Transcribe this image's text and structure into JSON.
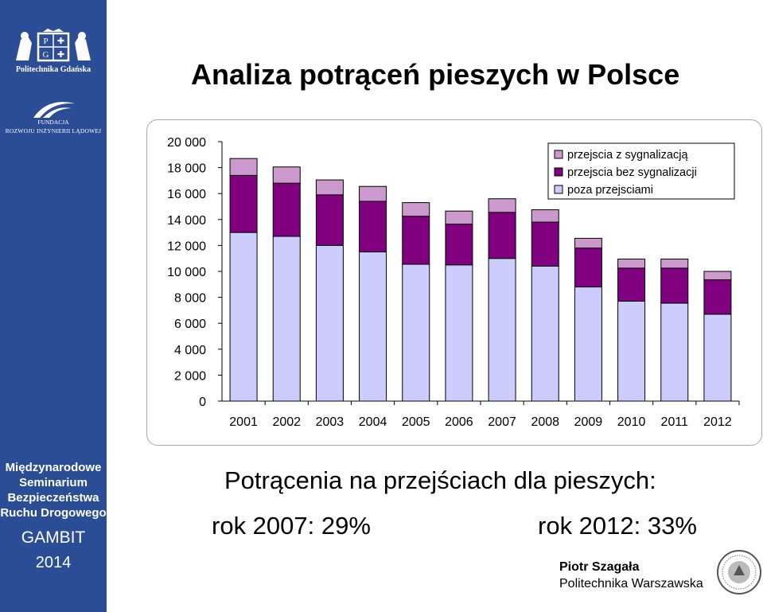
{
  "sidebar": {
    "university_name": "Politechnika  Gdańska",
    "foundation_line1": "FUNDACJA",
    "foundation_line2": "ROZWOJU  INŻYNIERII  LĄDOWEJ",
    "seminar_lines": [
      "Międzynarodowe",
      "Seminarium",
      "Bezpieczeństwa",
      "Ruchu Drogowego"
    ],
    "event": "GAMBIT",
    "year": "2014"
  },
  "title": "Analiza potrąceń pieszych w Polsce",
  "chart_data": {
    "type": "bar",
    "stacked": true,
    "categories": [
      "2001",
      "2002",
      "2003",
      "2004",
      "2005",
      "2006",
      "2007",
      "2008",
      "2009",
      "2010",
      "2011",
      "2012"
    ],
    "series": [
      {
        "name": "poza przejsciami",
        "color": "#ccccff",
        "values": [
          13000,
          12700,
          12000,
          11500,
          10550,
          10500,
          11000,
          10400,
          8800,
          7700,
          7550,
          6700
        ]
      },
      {
        "name": "przejscia bez sygnalizacji",
        "color": "#800080",
        "values": [
          4400,
          4100,
          3900,
          3900,
          3700,
          3150,
          3550,
          3400,
          3000,
          2550,
          2700,
          2650
        ]
      },
      {
        "name": "przejscia z sygnalizacją",
        "color": "#cc99cc",
        "values": [
          1300,
          1250,
          1150,
          1150,
          1050,
          1000,
          1050,
          950,
          750,
          700,
          700,
          650
        ]
      }
    ],
    "ylim": [
      0,
      20000
    ],
    "yticks": [
      "0",
      "2 000",
      "4 000",
      "6 000",
      "8 000",
      "10 000",
      "12 000",
      "14 000",
      "16 000",
      "18 000",
      "20 000"
    ],
    "grid": false,
    "legend_position": "top-right"
  },
  "subtitle": "Potrącenia na przejściach dla pieszych:",
  "stat_2007": "rok 2007: 29%",
  "stat_2012": "rok 2012: 33%",
  "author": "Piotr Szagała",
  "institution": "Politechnika Warszawska"
}
